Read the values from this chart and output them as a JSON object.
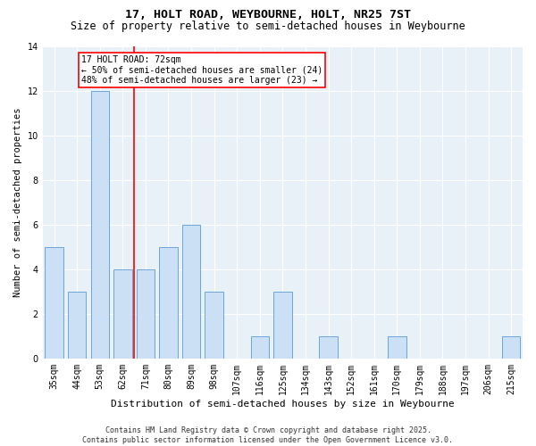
{
  "title": "17, HOLT ROAD, WEYBOURNE, HOLT, NR25 7ST",
  "subtitle": "Size of property relative to semi-detached houses in Weybourne",
  "xlabel": "Distribution of semi-detached houses by size in Weybourne",
  "ylabel": "Number of semi-detached properties",
  "categories": [
    "35sqm",
    "44sqm",
    "53sqm",
    "62sqm",
    "71sqm",
    "80sqm",
    "89sqm",
    "98sqm",
    "107sqm",
    "116sqm",
    "125sqm",
    "134sqm",
    "143sqm",
    "152sqm",
    "161sqm",
    "170sqm",
    "179sqm",
    "188sqm",
    "197sqm",
    "206sqm",
    "215sqm"
  ],
  "values": [
    5,
    3,
    12,
    4,
    4,
    5,
    6,
    3,
    0,
    1,
    3,
    0,
    1,
    0,
    0,
    1,
    0,
    0,
    0,
    0,
    1
  ],
  "bar_color": "#cce0f5",
  "bar_edge_color": "#5b9bd5",
  "vline_index": 3,
  "vline_color": "red",
  "annotation_text": "17 HOLT ROAD: 72sqm\n← 50% of semi-detached houses are smaller (24)\n48% of semi-detached houses are larger (23) →",
  "annotation_box_color": "white",
  "annotation_box_edge": "red",
  "ylim": [
    0,
    14
  ],
  "yticks": [
    0,
    2,
    4,
    6,
    8,
    10,
    12,
    14
  ],
  "background_color": "#e8f0f8",
  "grid_color": "white",
  "footer": "Contains HM Land Registry data © Crown copyright and database right 2025.\nContains public sector information licensed under the Open Government Licence v3.0.",
  "title_fontsize": 9.5,
  "subtitle_fontsize": 8.5,
  "xlabel_fontsize": 8,
  "ylabel_fontsize": 7.5,
  "tick_fontsize": 7,
  "annotation_fontsize": 7,
  "footer_fontsize": 6
}
